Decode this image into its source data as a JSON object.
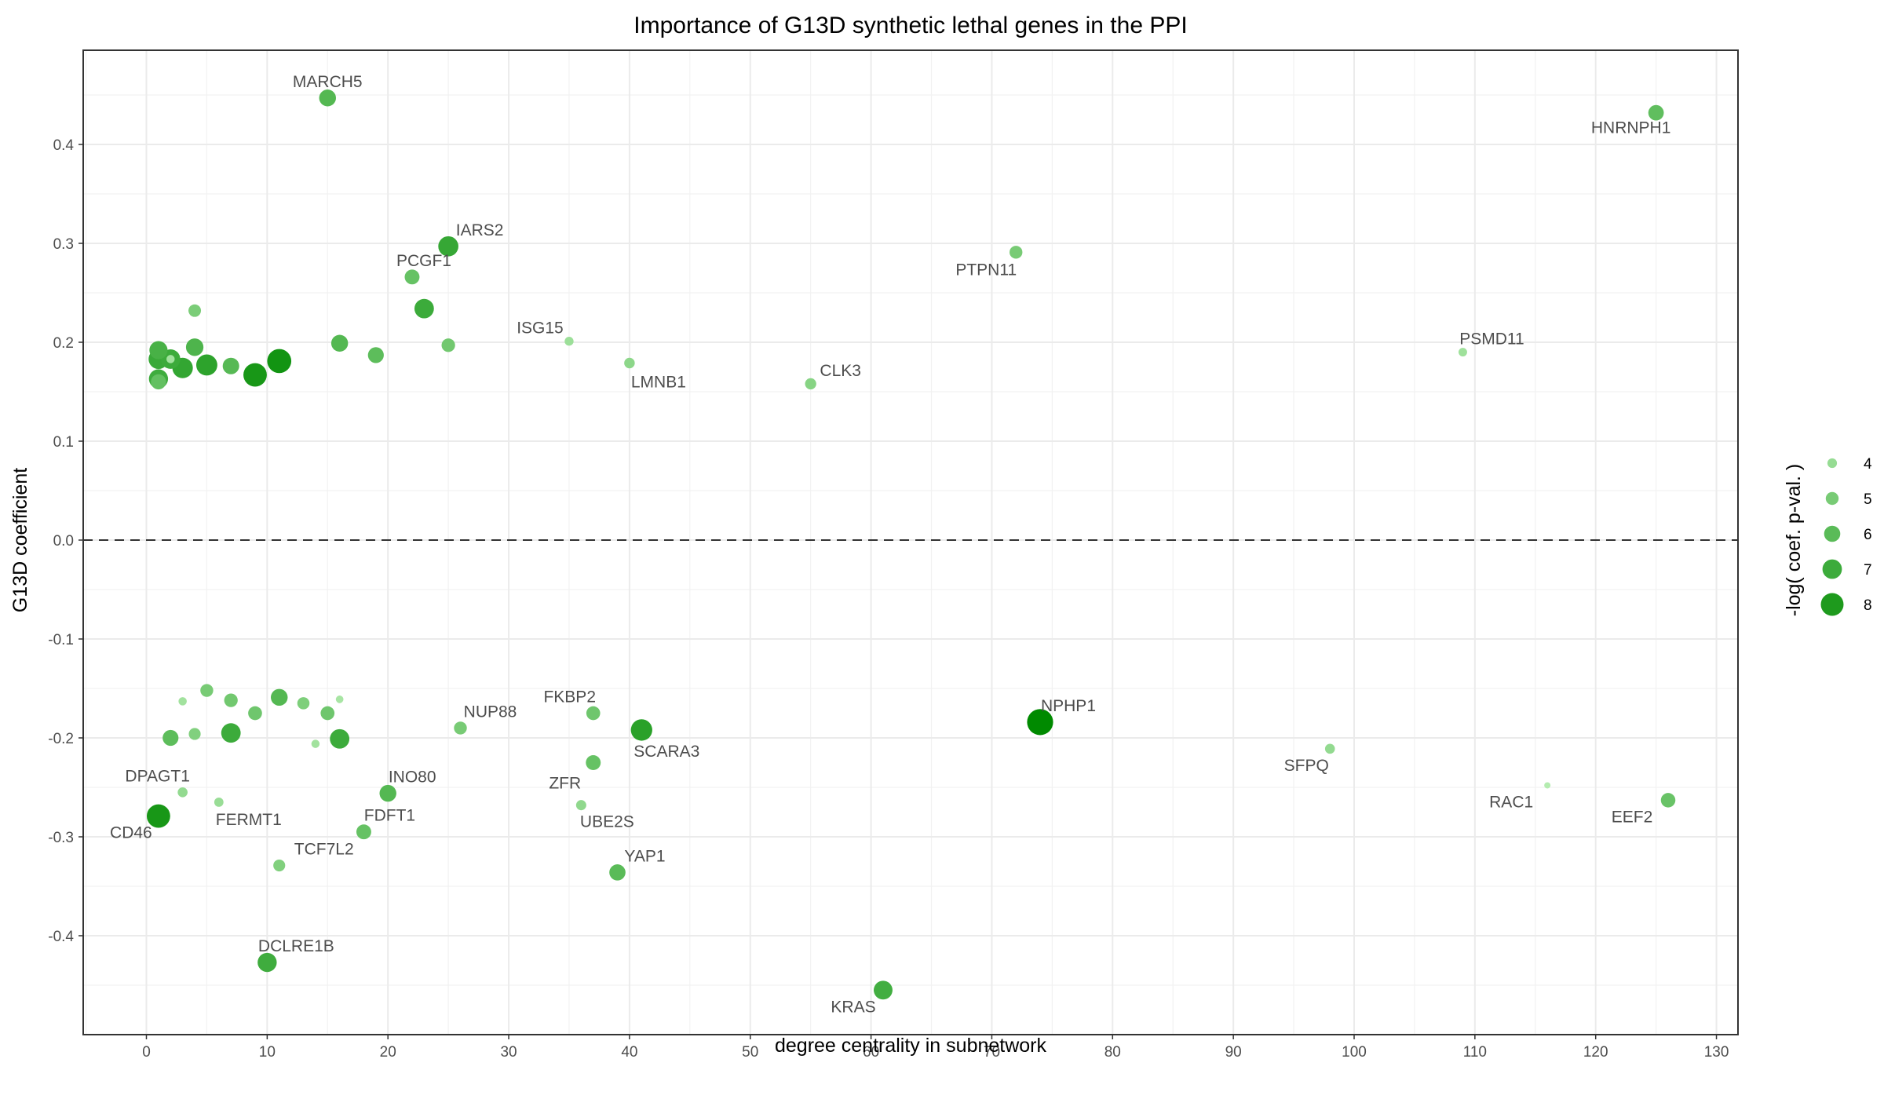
{
  "chart_data": {
    "type": "scatter",
    "title": "Importance of G13D synthetic lethal genes in the PPI",
    "xlabel": "degree centrality in subnetwork",
    "ylabel": "G13D coefficient",
    "xlim": [
      -5,
      132
    ],
    "ylim": [
      -0.5,
      0.5
    ],
    "x_ticks": [
      0,
      10,
      20,
      30,
      40,
      50,
      60,
      70,
      80,
      90,
      100,
      110,
      120,
      130
    ],
    "y_ticks": [
      0.4,
      0.3,
      0.2,
      0.1,
      0.0,
      -0.1,
      -0.2,
      -0.3,
      -0.4
    ],
    "y_tick_labels": [
      "0.4",
      "0.3",
      "0.2",
      "0.1",
      "0.0",
      "-0.1",
      "-0.2",
      "-0.3",
      "-0.4"
    ],
    "reference_line": {
      "y": 0,
      "style": "dashed"
    },
    "grid": true,
    "legend": {
      "title": "-log( coef. p-val. )",
      "position": "right",
      "entries": [
        4,
        5,
        6,
        7,
        8
      ]
    },
    "colors": {
      "low": "#b4ecb0",
      "high": "#008a00"
    },
    "points": [
      {
        "x": 15,
        "y": 0.447,
        "size": 6.2,
        "label": "MARCH5"
      },
      {
        "x": 125,
        "y": 0.432,
        "size": 5.8,
        "label": "HNRNPH1"
      },
      {
        "x": 25,
        "y": 0.297,
        "size": 7.2,
        "label": "IARS2"
      },
      {
        "x": 72,
        "y": 0.291,
        "size": 5.0,
        "label": "PTPN11"
      },
      {
        "x": 22,
        "y": 0.266,
        "size": 5.6,
        "label": "PCGF1"
      },
      {
        "x": 23,
        "y": 0.234,
        "size": 7.0,
        "label": ""
      },
      {
        "x": 4,
        "y": 0.232,
        "size": 4.9,
        "label": ""
      },
      {
        "x": 35,
        "y": 0.201,
        "size": 3.8,
        "label": "ISG15"
      },
      {
        "x": 16,
        "y": 0.199,
        "size": 6.2,
        "label": ""
      },
      {
        "x": 25,
        "y": 0.197,
        "size": 5.2,
        "label": ""
      },
      {
        "x": 4,
        "y": 0.195,
        "size": 6.4,
        "label": ""
      },
      {
        "x": 1,
        "y": 0.192,
        "size": 6.6,
        "label": ""
      },
      {
        "x": 19,
        "y": 0.187,
        "size": 5.9,
        "label": ""
      },
      {
        "x": 1,
        "y": 0.183,
        "size": 7.1,
        "label": ""
      },
      {
        "x": 2,
        "y": 0.183,
        "size": 7.0,
        "label": ""
      },
      {
        "x": 2,
        "y": 0.183,
        "size": 3.6,
        "label": ""
      },
      {
        "x": 11,
        "y": 0.181,
        "size": 8.4,
        "label": ""
      },
      {
        "x": 40,
        "y": 0.179,
        "size": 4.3,
        "label": "LMNB1"
      },
      {
        "x": 5,
        "y": 0.177,
        "size": 7.5,
        "label": ""
      },
      {
        "x": 7,
        "y": 0.176,
        "size": 6.1,
        "label": ""
      },
      {
        "x": 3,
        "y": 0.174,
        "size": 7.3,
        "label": ""
      },
      {
        "x": 109,
        "y": 0.19,
        "size": 3.7,
        "label": "PSMD11"
      },
      {
        "x": 9,
        "y": 0.167,
        "size": 8.2,
        "label": ""
      },
      {
        "x": 1,
        "y": 0.163,
        "size": 6.9,
        "label": ""
      },
      {
        "x": 1,
        "y": 0.16,
        "size": 5.7,
        "label": ""
      },
      {
        "x": 55,
        "y": 0.158,
        "size": 4.5,
        "label": "CLK3"
      },
      {
        "x": 74,
        "y": -0.184,
        "size": 9.0,
        "label": "NPHP1"
      },
      {
        "x": 5,
        "y": -0.152,
        "size": 5.0,
        "label": ""
      },
      {
        "x": 11,
        "y": -0.159,
        "size": 6.2,
        "label": ""
      },
      {
        "x": 3,
        "y": -0.163,
        "size": 3.6,
        "label": ""
      },
      {
        "x": 7,
        "y": -0.162,
        "size": 5.2,
        "label": ""
      },
      {
        "x": 13,
        "y": -0.165,
        "size": 4.8,
        "label": ""
      },
      {
        "x": 16,
        "y": -0.161,
        "size": 3.4,
        "label": ""
      },
      {
        "x": 9,
        "y": -0.175,
        "size": 5.3,
        "label": ""
      },
      {
        "x": 15,
        "y": -0.175,
        "size": 5.3,
        "label": ""
      },
      {
        "x": 37,
        "y": -0.175,
        "size": 5.3,
        "label": "FKBP2"
      },
      {
        "x": 26,
        "y": -0.19,
        "size": 5.0,
        "label": "NUP88"
      },
      {
        "x": 41,
        "y": -0.192,
        "size": 7.6,
        "label": "SCARA3"
      },
      {
        "x": 7,
        "y": -0.195,
        "size": 7.0,
        "label": ""
      },
      {
        "x": 4,
        "y": -0.196,
        "size": 4.7,
        "label": ""
      },
      {
        "x": 2,
        "y": -0.2,
        "size": 5.9,
        "label": ""
      },
      {
        "x": 16,
        "y": -0.201,
        "size": 7.0,
        "label": ""
      },
      {
        "x": 14,
        "y": -0.206,
        "size": 3.6,
        "label": ""
      },
      {
        "x": 98,
        "y": -0.211,
        "size": 4.1,
        "label": "SFPQ"
      },
      {
        "x": 37,
        "y": -0.225,
        "size": 5.6,
        "label": "ZFR"
      },
      {
        "x": 116,
        "y": -0.248,
        "size": 3.0,
        "label": "RAC1"
      },
      {
        "x": 3,
        "y": -0.255,
        "size": 4.1,
        "label": "DPAGT1"
      },
      {
        "x": 20,
        "y": -0.256,
        "size": 6.2,
        "label": "INO80"
      },
      {
        "x": 126,
        "y": -0.263,
        "size": 5.5,
        "label": "EEF2"
      },
      {
        "x": 6,
        "y": -0.265,
        "size": 3.9,
        "label": "FERMT1"
      },
      {
        "x": 36,
        "y": -0.268,
        "size": 4.2,
        "label": "UBE2S"
      },
      {
        "x": 1,
        "y": -0.279,
        "size": 8.2,
        "label": "CD46"
      },
      {
        "x": 18,
        "y": -0.295,
        "size": 5.6,
        "label": "FDFT1"
      },
      {
        "x": 11,
        "y": -0.329,
        "size": 4.7,
        "label": "TCF7L2"
      },
      {
        "x": 39,
        "y": -0.336,
        "size": 6.0,
        "label": "YAP1"
      },
      {
        "x": 10,
        "y": -0.427,
        "size": 6.9,
        "label": "DCLRE1B"
      },
      {
        "x": 61,
        "y": -0.455,
        "size": 6.8,
        "label": "KRAS"
      }
    ]
  }
}
